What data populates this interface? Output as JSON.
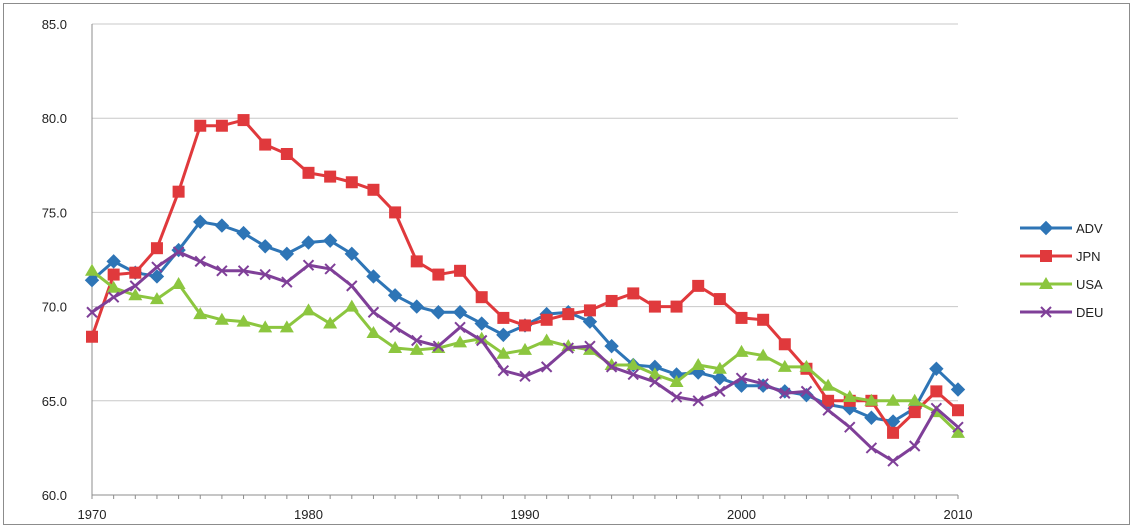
{
  "chart_data": {
    "type": "line",
    "title": "",
    "xlabel": "",
    "ylabel": "",
    "xlim": [
      1970,
      2010
    ],
    "ylim": [
      60,
      85
    ],
    "x_ticks": [
      1970,
      1980,
      1990,
      2000,
      2010
    ],
    "y_ticks": [
      "60.0",
      "65.0",
      "70.0",
      "75.0",
      "80.0",
      "85.0"
    ],
    "grid": "horizontal",
    "legend_position": "right",
    "x": [
      1970,
      1971,
      1972,
      1973,
      1974,
      1975,
      1976,
      1977,
      1978,
      1979,
      1980,
      1981,
      1982,
      1983,
      1984,
      1985,
      1986,
      1987,
      1988,
      1989,
      1990,
      1991,
      1992,
      1993,
      1994,
      1995,
      1996,
      1997,
      1998,
      1999,
      2000,
      2001,
      2002,
      2003,
      2004,
      2005,
      2006,
      2007,
      2008,
      2009,
      2010
    ],
    "series": [
      {
        "name": "ADV",
        "color": "#2e75b6",
        "marker": "diamond",
        "values": [
          71.4,
          72.4,
          71.8,
          71.6,
          73.0,
          74.5,
          74.3,
          73.9,
          73.2,
          72.8,
          73.4,
          73.5,
          72.8,
          71.6,
          70.6,
          70.0,
          69.7,
          69.7,
          69.1,
          68.5,
          69.0,
          69.6,
          69.7,
          69.2,
          67.9,
          66.9,
          66.8,
          66.4,
          66.5,
          66.2,
          65.8,
          65.8,
          65.5,
          65.3,
          64.8,
          64.6,
          64.1,
          63.9,
          64.6,
          66.7,
          65.6
        ]
      },
      {
        "name": "JPN",
        "color": "#e0393c",
        "marker": "square",
        "values": [
          68.4,
          71.7,
          71.8,
          73.1,
          76.1,
          79.6,
          79.6,
          79.9,
          78.6,
          78.1,
          77.1,
          76.9,
          76.6,
          76.2,
          75.0,
          72.4,
          71.7,
          71.9,
          70.5,
          69.4,
          69.0,
          69.3,
          69.6,
          69.8,
          70.3,
          70.7,
          70.0,
          70.0,
          71.1,
          70.4,
          69.4,
          69.3,
          68.0,
          66.7,
          65.0,
          65.0,
          65.0,
          63.3,
          64.4,
          65.5,
          64.5
        ]
      },
      {
        "name": "USA",
        "color": "#8cc63f",
        "marker": "triangle",
        "values": [
          71.9,
          71.0,
          70.6,
          70.4,
          71.2,
          69.6,
          69.3,
          69.2,
          68.9,
          68.9,
          69.8,
          69.1,
          70.0,
          68.6,
          67.8,
          67.7,
          67.8,
          68.1,
          68.3,
          67.5,
          67.7,
          68.2,
          67.9,
          67.7,
          66.9,
          66.9,
          66.4,
          66.0,
          66.9,
          66.7,
          67.6,
          67.4,
          66.8,
          66.8,
          65.8,
          65.2,
          65.0,
          65.0,
          65.0,
          64.4,
          63.3
        ]
      },
      {
        "name": "DEU",
        "color": "#7f3f98",
        "marker": "x",
        "values": [
          69.7,
          70.5,
          71.1,
          72.1,
          72.9,
          72.4,
          71.9,
          71.9,
          71.7,
          71.3,
          72.2,
          72.0,
          71.1,
          69.7,
          68.9,
          68.2,
          67.9,
          68.9,
          68.2,
          66.6,
          66.3,
          66.8,
          67.8,
          67.9,
          66.8,
          66.4,
          66.0,
          65.2,
          65.0,
          65.5,
          66.2,
          65.9,
          65.4,
          65.5,
          64.5,
          63.6,
          62.5,
          61.8,
          62.6,
          64.6,
          63.6
        ]
      }
    ]
  }
}
